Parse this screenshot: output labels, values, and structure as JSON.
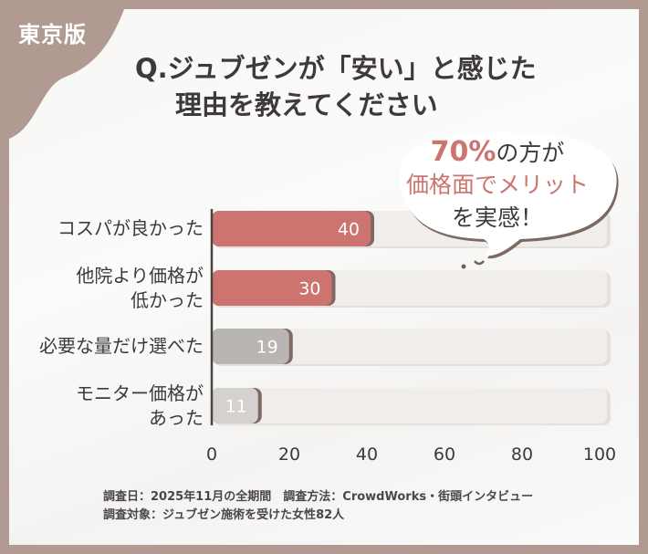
{
  "badge": "東京版",
  "title": {
    "line1": "Q.ジュブゼンが「安い」と感じた",
    "line2": "理由を教えてください"
  },
  "callout": {
    "highlight": "70%",
    "line1_rest": "の方が",
    "line2": "価格面でメリット",
    "line3": "を実感！"
  },
  "chart_data": {
    "type": "bar",
    "orientation": "horizontal",
    "categories": [
      [
        "コスパが良かった"
      ],
      [
        "他院より価格が",
        "低かった"
      ],
      [
        "必要な量だけ選べた"
      ],
      [
        "モニター価格が",
        "あった"
      ]
    ],
    "values": [
      40,
      30,
      19,
      11
    ],
    "value_labels": [
      "40",
      "30",
      "19",
      "11"
    ],
    "xlim": [
      0,
      100
    ],
    "xticks": [
      "0",
      "20",
      "40",
      "60",
      "80",
      "100"
    ],
    "colors": [
      "#cd7470",
      "#cd7470",
      "#b9b5b3",
      "#d4d1cf"
    ],
    "track_color": "#f0edeb",
    "grid": false
  },
  "notes": {
    "line1": "調査日：2025年11月の全期間　調査方法：CrowdWorks・街頭インタビュー",
    "line2": "調査対象：ジュブゼン施術を受けた女性82人"
  },
  "colors": {
    "frame": "#b09a91",
    "accent": "#cd7470",
    "text": "#3d3a39"
  }
}
